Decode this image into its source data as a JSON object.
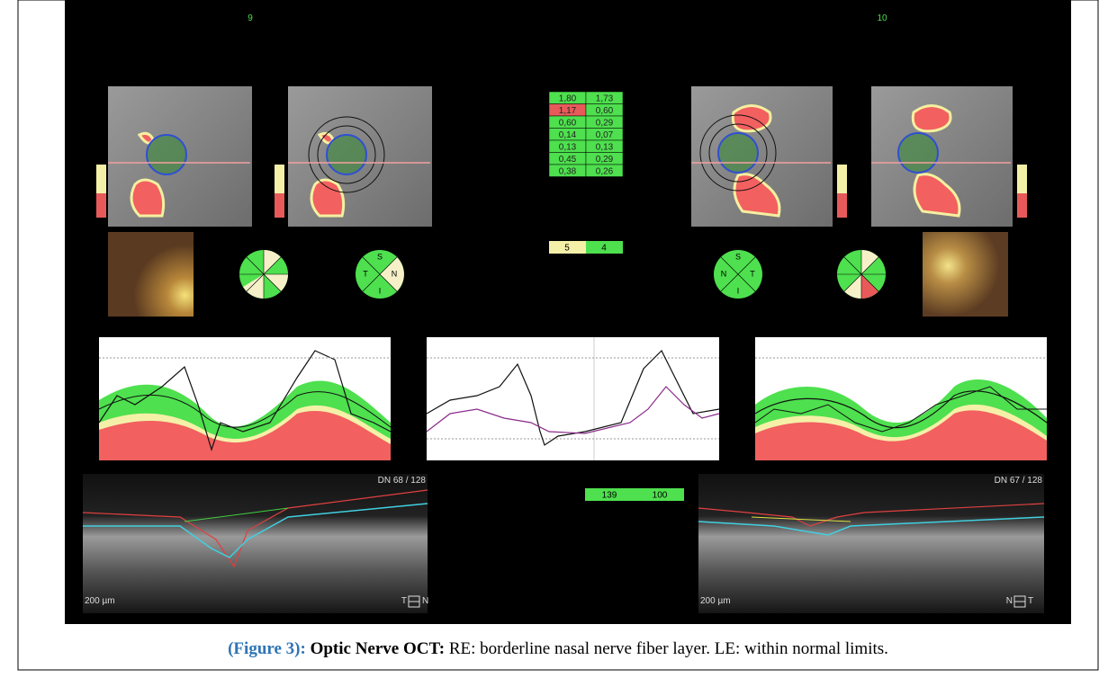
{
  "header": {
    "left_label": "9",
    "right_label": "10"
  },
  "ratio_table": {
    "rows": [
      [
        "1,80",
        "1,73"
      ],
      [
        "1,17",
        "0,60"
      ],
      [
        "0,60",
        "0,29"
      ],
      [
        "0,14",
        "0,07"
      ],
      [
        "0,13",
        "0,13"
      ],
      [
        "0,45",
        "0,29"
      ],
      [
        "0,38",
        "0,26"
      ]
    ]
  },
  "sector_counts": [
    "5",
    "4"
  ],
  "thickness": [
    "139",
    "100"
  ],
  "sector_legend": {
    "right_eye": [
      "S",
      "T",
      "N",
      "I"
    ],
    "left_eye": [
      "S",
      "N",
      "T",
      "I"
    ]
  },
  "scans": [
    {
      "label": "DN 68 / 128",
      "scale": "200 µm",
      "from": "T",
      "to": "N"
    },
    {
      "label": "DN 67 / 128",
      "scale": "200 µm",
      "from": "N",
      "to": "T"
    }
  ],
  "caption": {
    "figure": "(Figure 3):",
    "heading": "Optic Nerve OCT:",
    "text": "RE: borderline nasal nerve fiber layer. LE: within normal limits."
  }
}
